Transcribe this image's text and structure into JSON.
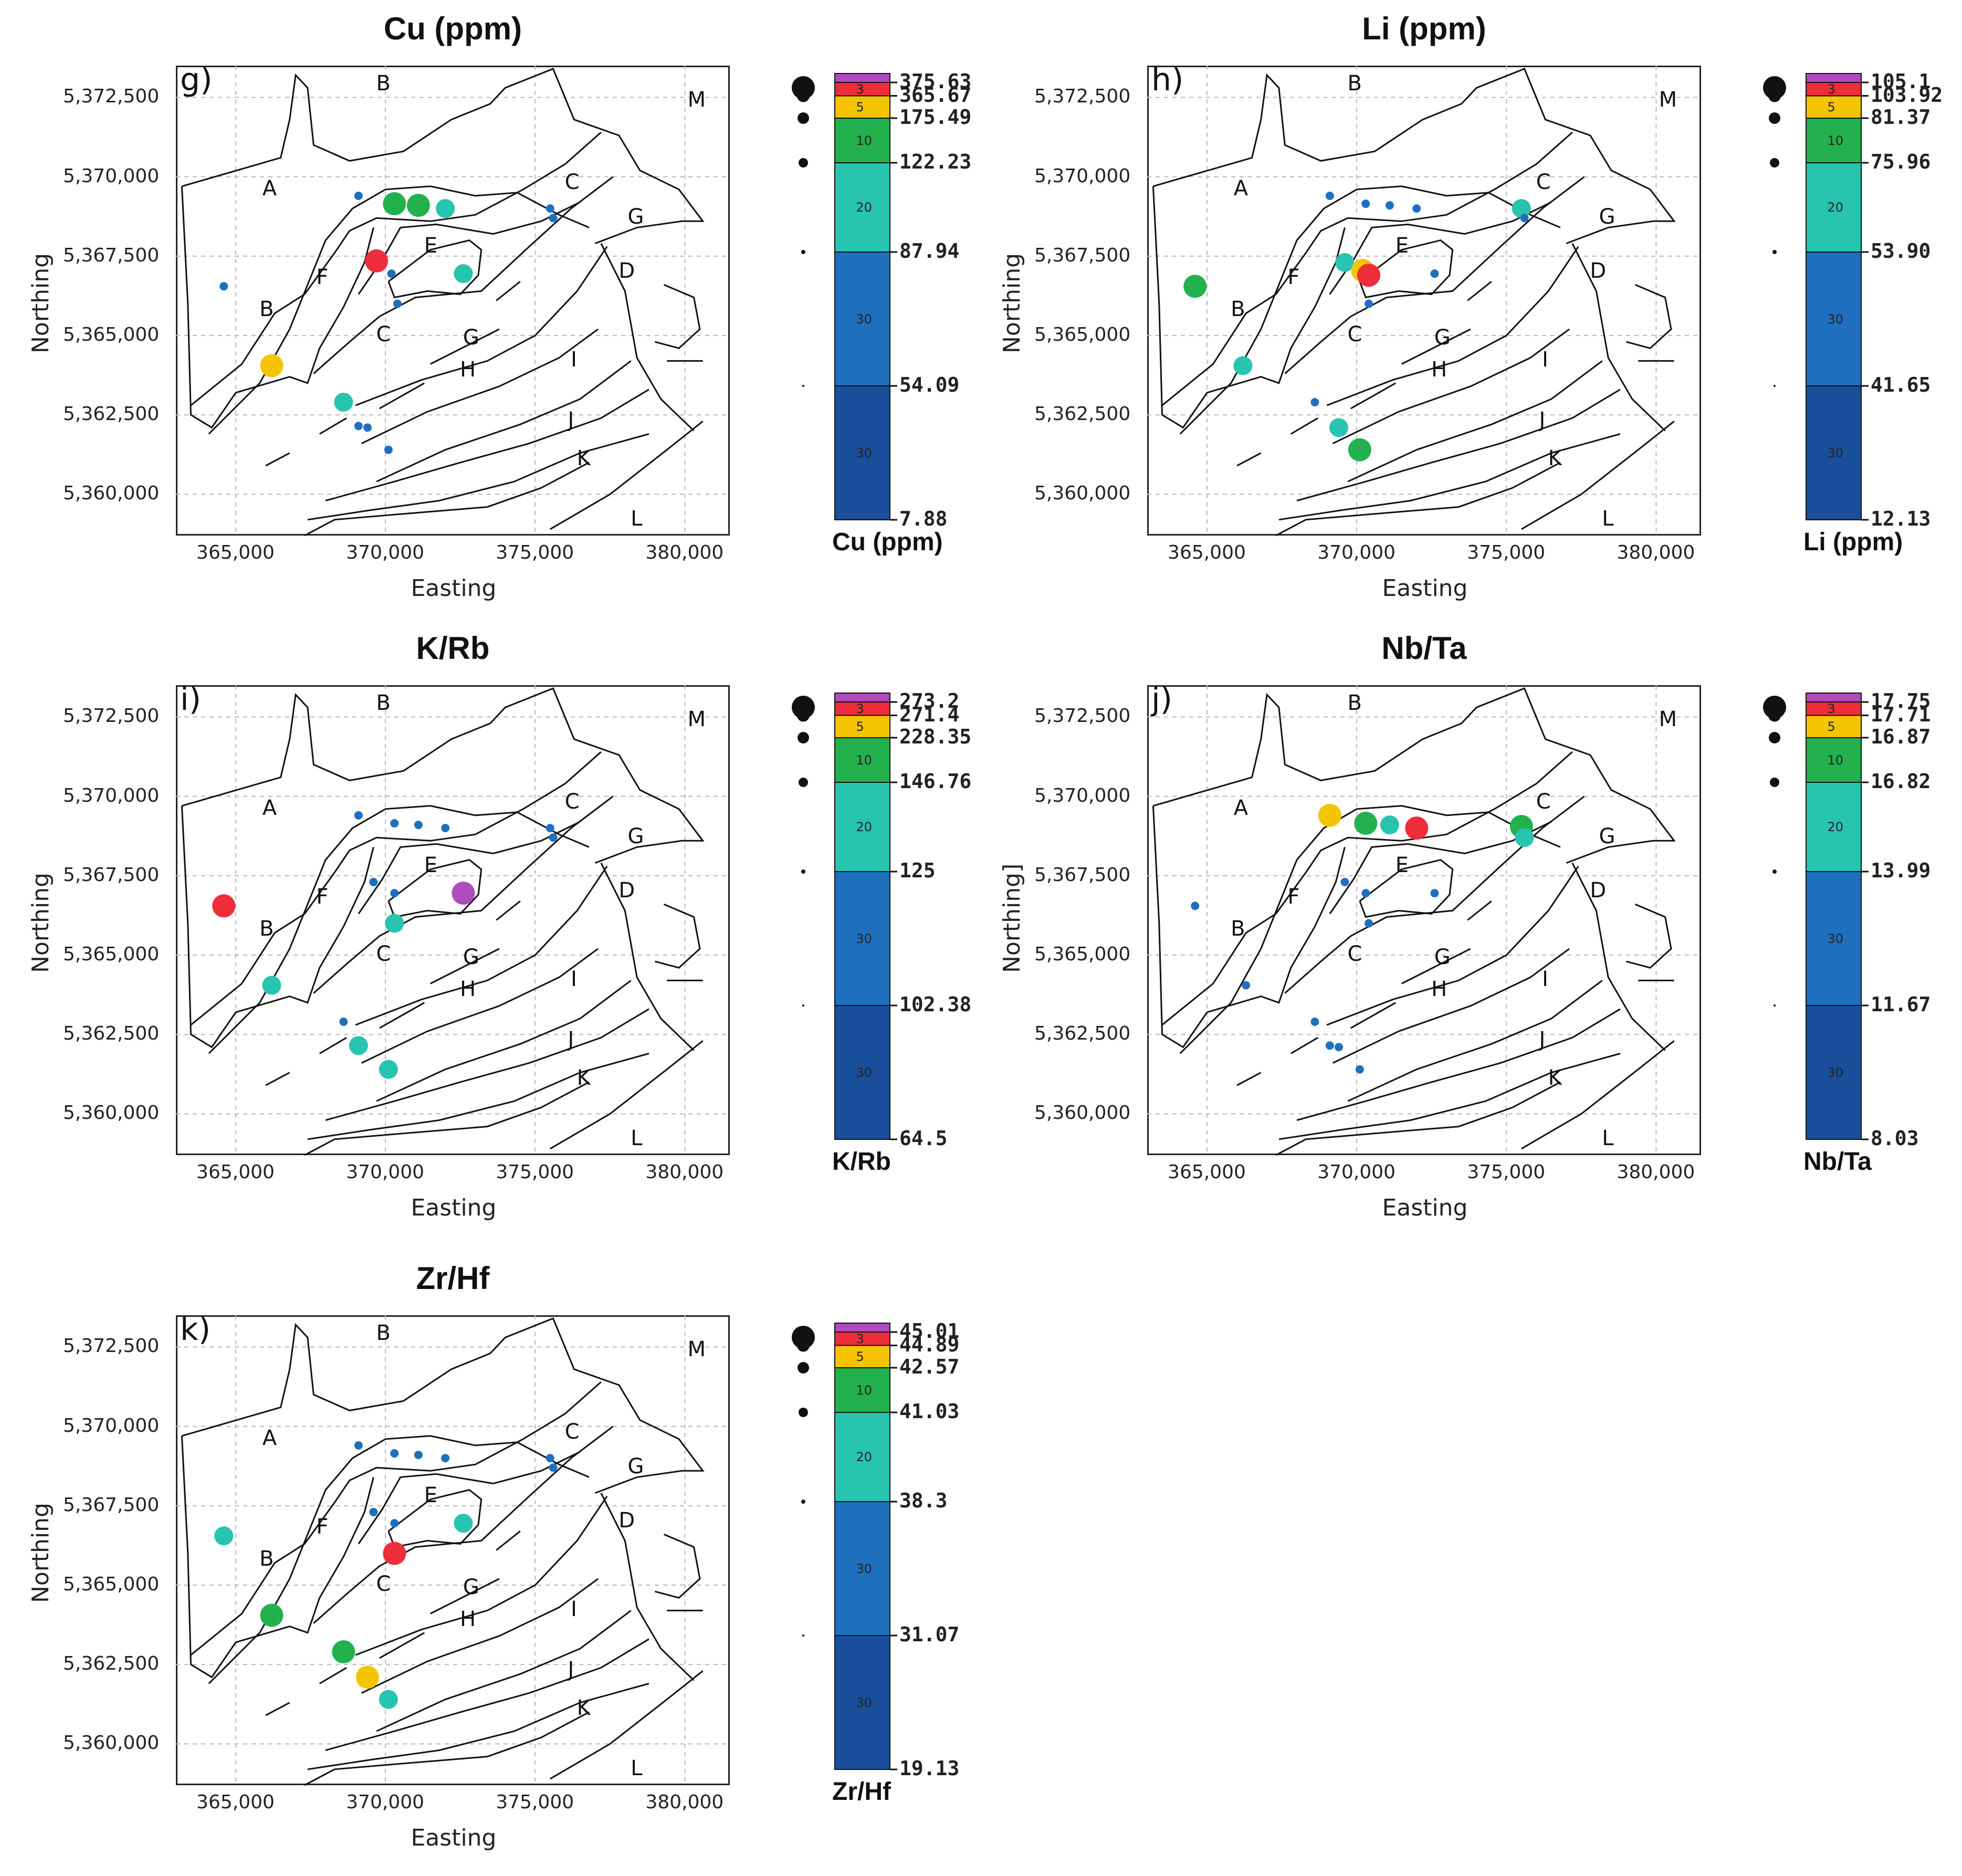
{
  "axis": {
    "x_title": "Easting",
    "x_ticks": [
      "365,000",
      "370,000",
      "375,000",
      "380,000"
    ],
    "y_ticks": [
      "5,372,500",
      "5,370,000",
      "5,367,500",
      "5,365,000",
      "5,362,500",
      "5,360,000"
    ]
  },
  "class_colors": [
    "#1a4f9c",
    "#1f6fbf",
    "#27c4b0",
    "#22b14c",
    "#f5c400",
    "#ee2d3a",
    "#b04bbf"
  ],
  "percent_labels": [
    "30",
    "30",
    "20",
    "10",
    "5",
    "3"
  ],
  "region_labels": [
    "A",
    "B",
    "B",
    "C",
    "C",
    "D",
    "E",
    "F",
    "G",
    "G",
    "H",
    "I",
    "J",
    "K",
    "L",
    "M"
  ],
  "panels": [
    {
      "letter": "g)",
      "title": "Cu (ppm)",
      "ylabel": "Northing",
      "cbar_title": "Cu (ppm)",
      "breaks": [
        "7.88",
        "54.09",
        "87.94",
        "122.23",
        "175.49",
        "365.67",
        "375.63"
      ],
      "samples": [
        {
          "e": 364600,
          "n": 5366550,
          "c": 1
        },
        {
          "e": 366200,
          "n": 5364050,
          "c": 4
        },
        {
          "e": 368600,
          "n": 5362900,
          "c": 2
        },
        {
          "e": 369100,
          "n": 5362150,
          "c": 1
        },
        {
          "e": 369400,
          "n": 5362100,
          "c": 1
        },
        {
          "e": 370100,
          "n": 5361400,
          "c": 1
        },
        {
          "e": 369100,
          "n": 5369400,
          "c": 1
        },
        {
          "e": 370300,
          "n": 5369150,
          "c": 3
        },
        {
          "e": 371100,
          "n": 5369100,
          "c": 3
        },
        {
          "e": 372000,
          "n": 5369000,
          "c": 2
        },
        {
          "e": 369700,
          "n": 5367350,
          "c": 5
        },
        {
          "e": 370200,
          "n": 5366950,
          "c": 1
        },
        {
          "e": 370400,
          "n": 5366000,
          "c": 1
        },
        {
          "e": 372600,
          "n": 5366950,
          "c": 2
        },
        {
          "e": 375500,
          "n": 5369000,
          "c": 1
        },
        {
          "e": 375600,
          "n": 5368700,
          "c": 1
        }
      ]
    },
    {
      "letter": "h)",
      "title": "Li (ppm)",
      "ylabel": "Northing",
      "cbar_title": "Li (ppm)",
      "breaks": [
        "12.13",
        "41.65",
        "53.90",
        "75.96",
        "81.37",
        "103.92",
        "105.1"
      ],
      "samples": [
        {
          "e": 364600,
          "n": 5366550,
          "c": 3
        },
        {
          "e": 366200,
          "n": 5364050,
          "c": 2
        },
        {
          "e": 368600,
          "n": 5362900,
          "c": 1
        },
        {
          "e": 369400,
          "n": 5362100,
          "c": 2
        },
        {
          "e": 370100,
          "n": 5361400,
          "c": 3
        },
        {
          "e": 369100,
          "n": 5369400,
          "c": 1
        },
        {
          "e": 370300,
          "n": 5369150,
          "c": 1
        },
        {
          "e": 371100,
          "n": 5369100,
          "c": 1
        },
        {
          "e": 372000,
          "n": 5369000,
          "c": 1
        },
        {
          "e": 369600,
          "n": 5367300,
          "c": 2
        },
        {
          "e": 370200,
          "n": 5367050,
          "c": 4
        },
        {
          "e": 370400,
          "n": 5366900,
          "c": 5
        },
        {
          "e": 370400,
          "n": 5366000,
          "c": 1
        },
        {
          "e": 372600,
          "n": 5366950,
          "c": 1
        },
        {
          "e": 375500,
          "n": 5369000,
          "c": 2
        },
        {
          "e": 375600,
          "n": 5368700,
          "c": 1
        }
      ]
    },
    {
      "letter": "i)",
      "title": "K/Rb",
      "ylabel": "Northing",
      "cbar_title": "K/Rb",
      "breaks": [
        "64.5",
        "102.38",
        "125",
        "146.76",
        "228.35",
        "271.4",
        "273.2"
      ],
      "samples": [
        {
          "e": 364600,
          "n": 5366550,
          "c": 5
        },
        {
          "e": 366200,
          "n": 5364050,
          "c": 2
        },
        {
          "e": 368600,
          "n": 5362900,
          "c": 1
        },
        {
          "e": 369100,
          "n": 5362150,
          "c": 2
        },
        {
          "e": 370100,
          "n": 5361400,
          "c": 2
        },
        {
          "e": 369100,
          "n": 5369400,
          "c": 1
        },
        {
          "e": 370300,
          "n": 5369150,
          "c": 1
        },
        {
          "e": 371100,
          "n": 5369100,
          "c": 1
        },
        {
          "e": 372000,
          "n": 5369000,
          "c": 1
        },
        {
          "e": 369600,
          "n": 5367300,
          "c": 1
        },
        {
          "e": 370300,
          "n": 5366950,
          "c": 1
        },
        {
          "e": 370300,
          "n": 5366000,
          "c": 2
        },
        {
          "e": 372600,
          "n": 5366950,
          "c": 6
        },
        {
          "e": 375500,
          "n": 5369000,
          "c": 1
        },
        {
          "e": 375600,
          "n": 5368700,
          "c": 1
        }
      ]
    },
    {
      "letter": "j)",
      "title": "Nb/Ta",
      "ylabel": "Northing]",
      "cbar_title": "Nb/Ta",
      "breaks": [
        "8.03",
        "11.67",
        "13.99",
        "16.82",
        "16.87",
        "17.71",
        "17.75"
      ],
      "samples": [
        {
          "e": 364600,
          "n": 5366550,
          "c": 1
        },
        {
          "e": 366300,
          "n": 5364050,
          "c": 1
        },
        {
          "e": 368600,
          "n": 5362900,
          "c": 1
        },
        {
          "e": 369100,
          "n": 5362150,
          "c": 1
        },
        {
          "e": 369400,
          "n": 5362100,
          "c": 1
        },
        {
          "e": 370100,
          "n": 5361400,
          "c": 1
        },
        {
          "e": 369100,
          "n": 5369400,
          "c": 4
        },
        {
          "e": 370300,
          "n": 5369150,
          "c": 3
        },
        {
          "e": 371100,
          "n": 5369100,
          "c": 2
        },
        {
          "e": 372000,
          "n": 5369000,
          "c": 5
        },
        {
          "e": 369600,
          "n": 5367300,
          "c": 1
        },
        {
          "e": 370300,
          "n": 5366950,
          "c": 1
        },
        {
          "e": 370400,
          "n": 5366000,
          "c": 1
        },
        {
          "e": 372600,
          "n": 5366950,
          "c": 1
        },
        {
          "e": 375500,
          "n": 5369050,
          "c": 3
        },
        {
          "e": 375600,
          "n": 5368700,
          "c": 2
        }
      ]
    },
    {
      "letter": "k)",
      "title": "Zr/Hf",
      "ylabel": "Northing",
      "cbar_title": "Zr/Hf",
      "breaks": [
        "19.13",
        "31.07",
        "38.3",
        "41.03",
        "42.57",
        "44.89",
        "45.01"
      ],
      "samples": [
        {
          "e": 364600,
          "n": 5366550,
          "c": 2
        },
        {
          "e": 366200,
          "n": 5364050,
          "c": 3
        },
        {
          "e": 368600,
          "n": 5362900,
          "c": 3
        },
        {
          "e": 369400,
          "n": 5362100,
          "c": 4
        },
        {
          "e": 370100,
          "n": 5361400,
          "c": 2
        },
        {
          "e": 369100,
          "n": 5369400,
          "c": 1
        },
        {
          "e": 370300,
          "n": 5369150,
          "c": 1
        },
        {
          "e": 371100,
          "n": 5369100,
          "c": 1
        },
        {
          "e": 372000,
          "n": 5369000,
          "c": 1
        },
        {
          "e": 369600,
          "n": 5367300,
          "c": 1
        },
        {
          "e": 370300,
          "n": 5366950,
          "c": 1
        },
        {
          "e": 370300,
          "n": 5366000,
          "c": 5
        },
        {
          "e": 372600,
          "n": 5366950,
          "c": 2
        },
        {
          "e": 375500,
          "n": 5369000,
          "c": 1
        },
        {
          "e": 375600,
          "n": 5368700,
          "c": 1
        }
      ]
    }
  ]
}
